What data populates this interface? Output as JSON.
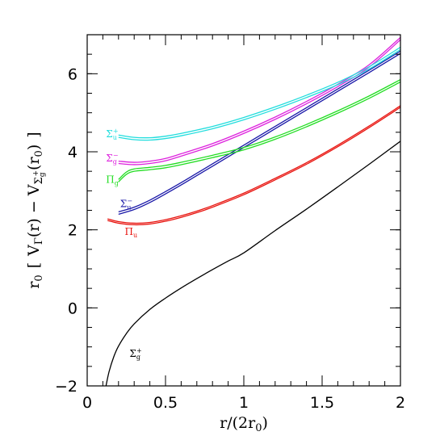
{
  "chart_data": {
    "type": "line",
    "xlabel": {
      "main": "r/(2r",
      "sub": "0",
      "close": ")"
    },
    "ylabel": {
      "prefix": "r",
      "prefix_sub": "0",
      "open": "[",
      "v1": "V",
      "v1_sub": "Γ",
      "mid": "(r) − V",
      "v2_sub_main": "Σ",
      "v2_sub_sub": "g",
      "v2_sub_sup": "+",
      "arg_open": "(r",
      "arg_sub": "0",
      "arg_close": ")",
      "close": "]"
    },
    "xlim": [
      0,
      2
    ],
    "ylim": [
      -2,
      7
    ],
    "xticks": [
      {
        "value": 0,
        "label": "0"
      },
      {
        "value": 0.5,
        "label": "0.5"
      },
      {
        "value": 1,
        "label": "1"
      },
      {
        "value": 1.5,
        "label": "1.5"
      },
      {
        "value": 2,
        "label": "2"
      }
    ],
    "yticks": [
      {
        "value": -2,
        "label": "−2"
      },
      {
        "value": 0,
        "label": "0"
      },
      {
        "value": 2,
        "label": "2"
      },
      {
        "value": 4,
        "label": "4"
      },
      {
        "value": 6,
        "label": "6"
      }
    ],
    "grid": false,
    "legend": "none",
    "series": [
      {
        "key": "sigma_g_plus",
        "label_main": "Σ",
        "label_sub": "g",
        "label_sup": "+",
        "color": "#000000",
        "band": 0,
        "label_at": [
          0.27,
          -1.25
        ],
        "points": [
          [
            0.12,
            -2.0
          ],
          [
            0.14,
            -1.63
          ],
          [
            0.17,
            -1.25
          ],
          [
            0.2,
            -0.98
          ],
          [
            0.25,
            -0.66
          ],
          [
            0.3,
            -0.41
          ],
          [
            0.4,
            -0.04
          ],
          [
            0.5,
            0.25
          ],
          [
            0.6,
            0.51
          ],
          [
            0.7,
            0.75
          ],
          [
            0.8,
            0.98
          ],
          [
            0.9,
            1.2
          ],
          [
            1.0,
            1.41
          ],
          [
            1.2,
            1.98
          ],
          [
            1.4,
            2.53
          ],
          [
            1.6,
            3.1
          ],
          [
            1.8,
            3.68
          ],
          [
            2.0,
            4.27
          ]
        ]
      },
      {
        "key": "pi_u",
        "label_main": "Π",
        "label_sub": "u",
        "label": "",
        "color": "#e8140f",
        "band": 0.04,
        "label_at": [
          0.24,
          1.87
        ],
        "points": [
          [
            0.13,
            2.26
          ],
          [
            0.2,
            2.19
          ],
          [
            0.3,
            2.15
          ],
          [
            0.4,
            2.17
          ],
          [
            0.5,
            2.24
          ],
          [
            0.6,
            2.34
          ],
          [
            0.7,
            2.46
          ],
          [
            0.8,
            2.6
          ],
          [
            1.0,
            2.92
          ],
          [
            1.2,
            3.3
          ],
          [
            1.4,
            3.7
          ],
          [
            1.6,
            4.15
          ],
          [
            1.8,
            4.64
          ],
          [
            2.0,
            5.16
          ]
        ]
      },
      {
        "key": "sigma_u_minus",
        "label_main": "Σ",
        "label_sub": "u",
        "label_sup": "−",
        "color": "#1a18a8",
        "band": 0.06,
        "label_at": [
          0.21,
          2.58
        ],
        "points": [
          [
            0.2,
            2.43
          ],
          [
            0.3,
            2.55
          ],
          [
            0.4,
            2.73
          ],
          [
            0.5,
            2.95
          ],
          [
            0.6,
            3.18
          ],
          [
            0.7,
            3.42
          ],
          [
            0.8,
            3.66
          ],
          [
            1.0,
            4.14
          ],
          [
            1.2,
            4.62
          ],
          [
            1.4,
            5.1
          ],
          [
            1.6,
            5.58
          ],
          [
            1.8,
            6.06
          ],
          [
            2.0,
            6.55
          ]
        ]
      },
      {
        "key": "pi_g",
        "label_main": "Π",
        "label_sub": "g",
        "color": "#22dd22",
        "band": 0.06,
        "label_at": [
          0.12,
          3.2
        ],
        "points": [
          [
            0.2,
            3.26
          ],
          [
            0.25,
            3.45
          ],
          [
            0.3,
            3.53
          ],
          [
            0.4,
            3.57
          ],
          [
            0.5,
            3.62
          ],
          [
            0.6,
            3.7
          ],
          [
            0.8,
            3.88
          ],
          [
            1.0,
            4.08
          ],
          [
            1.2,
            4.35
          ],
          [
            1.4,
            4.67
          ],
          [
            1.6,
            5.02
          ],
          [
            1.8,
            5.4
          ],
          [
            2.0,
            5.82
          ]
        ]
      },
      {
        "key": "sigma_g_minus",
        "label_main": "Σ",
        "label_sub": "g",
        "label_sup": "−",
        "color": "#dd22dd",
        "band": 0.06,
        "label_at": [
          0.12,
          3.75
        ],
        "points": [
          [
            0.2,
            3.73
          ],
          [
            0.3,
            3.7
          ],
          [
            0.4,
            3.73
          ],
          [
            0.5,
            3.8
          ],
          [
            0.6,
            3.92
          ],
          [
            0.8,
            4.18
          ],
          [
            1.0,
            4.5
          ],
          [
            1.2,
            4.86
          ],
          [
            1.4,
            5.26
          ],
          [
            1.6,
            5.7
          ],
          [
            1.8,
            6.2
          ],
          [
            2.0,
            6.9
          ]
        ]
      },
      {
        "key": "sigma_u_plus",
        "label_main": "Σ",
        "label_sub": "u",
        "label_sup": "+",
        "color": "#22dddd",
        "band": 0.06,
        "label_at": [
          0.12,
          4.37
        ],
        "points": [
          [
            0.2,
            4.4
          ],
          [
            0.3,
            4.34
          ],
          [
            0.4,
            4.33
          ],
          [
            0.5,
            4.37
          ],
          [
            0.6,
            4.44
          ],
          [
            0.8,
            4.62
          ],
          [
            1.0,
            4.85
          ],
          [
            1.2,
            5.12
          ],
          [
            1.4,
            5.42
          ],
          [
            1.6,
            5.75
          ],
          [
            1.8,
            6.15
          ],
          [
            2.0,
            6.65
          ]
        ]
      }
    ]
  }
}
